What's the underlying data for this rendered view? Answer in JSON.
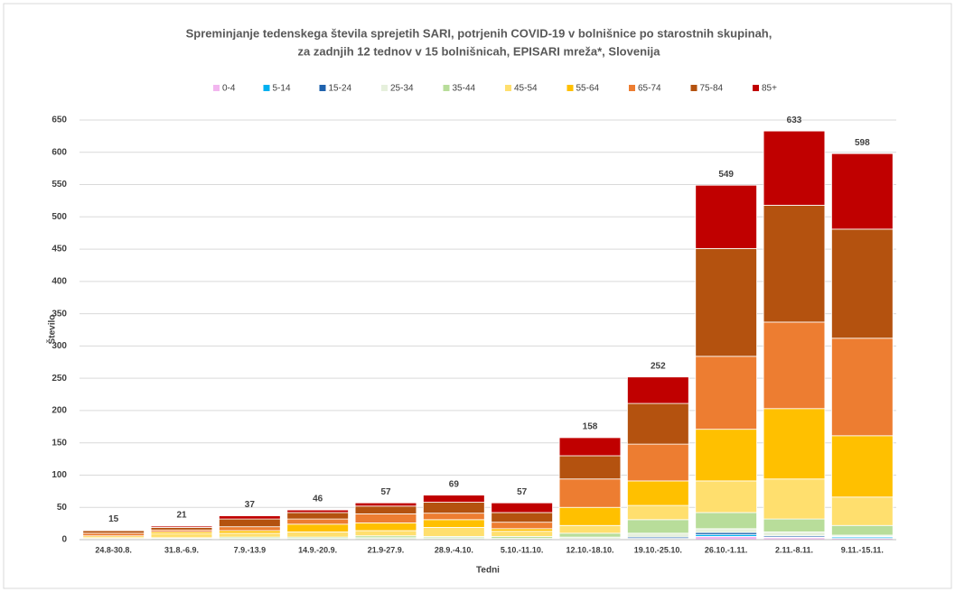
{
  "chart_data": {
    "type": "stacked_bar",
    "title": [
      "Spreminjanje tedenskega števila sprejetih SARI, potrjenih COVID-19 v bolnišnice po starostnih skupinah,",
      "za zadnjih 12 tednov v 15 bolnišnicah, EPISARI mreža*, Slovenija"
    ],
    "y_label": "Število",
    "x_label": "Tedni",
    "categories": [
      "24.8-30.8.",
      "31.8.-6.9.",
      "7.9.-13.9",
      "14.9.-20.9.",
      "21.9-27.9.",
      "28.9.-4.10.",
      "5.10.-11.10.",
      "12.10.-18.10.",
      "19.10.-25.10.",
      "26.10.-1.11.",
      "2.11.-8.11.",
      "9.11.-15.11."
    ],
    "totals": [
      15,
      21,
      37,
      46,
      57,
      69,
      57,
      158,
      252,
      549,
      633,
      598
    ],
    "series": [
      {
        "name": "0-4",
        "color": "#f2b6ef",
        "values": [
          0,
          0,
          0,
          0,
          0,
          0,
          0,
          0,
          1,
          5,
          3,
          2
        ]
      },
      {
        "name": "5-14",
        "color": "#00b0f0",
        "values": [
          0,
          0,
          0,
          0,
          0,
          0,
          0,
          1,
          1,
          3,
          1,
          2
        ]
      },
      {
        "name": "15-24",
        "color": "#1f62ad",
        "values": [
          0,
          0,
          0,
          0,
          0,
          0,
          0,
          0,
          2,
          3,
          2,
          1
        ]
      },
      {
        "name": "25-34",
        "color": "#e6f0dc",
        "values": [
          1,
          2,
          2,
          2,
          3,
          3,
          2,
          3,
          6,
          6,
          6,
          2
        ]
      },
      {
        "name": "35-44",
        "color": "#b8dd9a",
        "values": [
          1,
          1,
          2,
          2,
          3,
          2,
          3,
          6,
          21,
          25,
          20,
          15
        ]
      },
      {
        "name": "45-54",
        "color": "#ffdf6e",
        "values": [
          2,
          6,
          6,
          8,
          8,
          14,
          8,
          12,
          22,
          49,
          62,
          44
        ]
      },
      {
        "name": "55-64",
        "color": "#ffc000",
        "values": [
          2,
          3,
          4,
          12,
          12,
          12,
          4,
          28,
          38,
          80,
          109,
          95
        ]
      },
      {
        "name": "65-74",
        "color": "#ed7d31",
        "values": [
          4,
          3,
          6,
          8,
          14,
          10,
          10,
          44,
          57,
          113,
          134,
          151
        ]
      },
      {
        "name": "75-84",
        "color": "#b4520f",
        "values": [
          4,
          4,
          12,
          10,
          12,
          17,
          15,
          36,
          63,
          167,
          181,
          169
        ]
      },
      {
        "name": "85+",
        "color": "#c00000",
        "values": [
          1,
          2,
          5,
          4,
          5,
          11,
          15,
          28,
          41,
          98,
          115,
          117
        ]
      }
    ],
    "ylim": [
      0,
      650
    ],
    "yticks": [
      0,
      50,
      100,
      150,
      200,
      250,
      300,
      350,
      400,
      450,
      500,
      550,
      600,
      650
    ],
    "grid": true
  }
}
